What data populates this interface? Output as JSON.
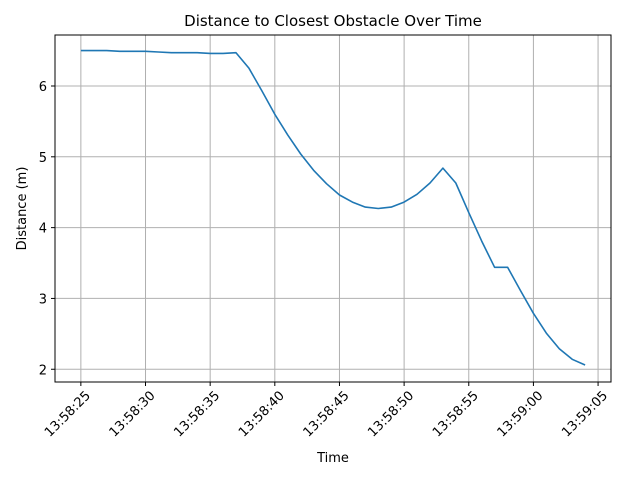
{
  "chart_data": {
    "type": "line",
    "title": "Distance to Closest Obstacle Over Time",
    "xlabel": "Time",
    "ylabel": "Distance (m)",
    "x_ticks": [
      "13:58:25",
      "13:58:30",
      "13:58:35",
      "13:58:40",
      "13:58:45",
      "13:58:50",
      "13:58:55",
      "13:59:00",
      "13:59:05"
    ],
    "y_ticks": [
      2,
      3,
      4,
      5,
      6
    ],
    "x_range": [
      "13:58:23",
      "13:59:06"
    ],
    "ylim": [
      1.82,
      6.72
    ],
    "grid": true,
    "line_color": "#1f77b4",
    "series": [
      {
        "x": [
          "13:58:25",
          "13:58:26",
          "13:58:27",
          "13:58:28",
          "13:58:29",
          "13:58:30",
          "13:58:31",
          "13:58:32",
          "13:58:33",
          "13:58:34",
          "13:58:35",
          "13:58:36",
          "13:58:37",
          "13:58:38",
          "13:58:39",
          "13:58:40",
          "13:58:41",
          "13:58:42",
          "13:58:43",
          "13:58:44",
          "13:58:45",
          "13:58:46",
          "13:58:47",
          "13:58:48",
          "13:58:49",
          "13:58:50",
          "13:58:51",
          "13:58:52",
          "13:58:53",
          "13:58:54",
          "13:58:55",
          "13:58:56",
          "13:58:57",
          "13:58:58",
          "13:58:59",
          "13:59:00",
          "13:59:01",
          "13:59:02",
          "13:59:03",
          "13:59:04"
        ],
        "values": [
          6.5,
          6.5,
          6.5,
          6.49,
          6.49,
          6.49,
          6.48,
          6.47,
          6.47,
          6.47,
          6.46,
          6.46,
          6.47,
          6.25,
          5.93,
          5.6,
          5.31,
          5.04,
          4.81,
          4.62,
          4.46,
          4.36,
          4.29,
          4.27,
          4.29,
          4.36,
          4.47,
          4.63,
          4.84,
          4.63,
          4.21,
          3.81,
          3.44,
          3.44,
          3.11,
          2.79,
          2.51,
          2.29,
          2.14,
          2.06
        ]
      }
    ]
  }
}
